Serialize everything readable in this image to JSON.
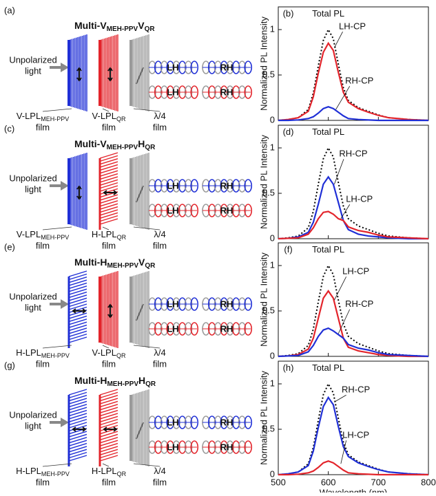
{
  "schematics": [
    {
      "label": "(a)",
      "title": [
        "Multi-V",
        "MEH-PPV",
        "V",
        "QR"
      ],
      "input": [
        "Unpolarized",
        "light"
      ],
      "films": [
        {
          "name": "V-LPL",
          "sub": "MEH-PPV",
          "line2": "film"
        },
        {
          "name": "V-LPL",
          "sub": "QR",
          "line2": "film"
        },
        {
          "name": "λ/4",
          "line2": "film"
        }
      ],
      "beams": [
        [
          "LH",
          "RH"
        ],
        [
          "LH",
          "RH"
        ]
      ]
    },
    {
      "label": "(c)",
      "title": [
        "Multi-V",
        "MEH-PPV",
        "H",
        "QR"
      ],
      "input": [
        "Unpolarized",
        "light"
      ],
      "films": [
        {
          "name": "V-LPL",
          "sub": "MEH-PPV",
          "line2": "film"
        },
        {
          "name": "H-LPL",
          "sub": "QR",
          "line2": "film"
        },
        {
          "name": "λ/4",
          "line2": "film"
        }
      ],
      "beams": [
        [
          "LH",
          "RH"
        ],
        [
          "LH",
          "RH"
        ]
      ]
    },
    {
      "label": "(e)",
      "title": [
        "Multi-H",
        "MEH-PPV",
        "V",
        "QR"
      ],
      "input": [
        "Unpolarized",
        "light"
      ],
      "films": [
        {
          "name": "H-LPL",
          "sub": "MEH-PPV",
          "line2": "film"
        },
        {
          "name": "V-LPL",
          "sub": "QR",
          "line2": "film"
        },
        {
          "name": "λ/4",
          "line2": "film"
        }
      ],
      "beams": [
        [
          "LH",
          "RH"
        ],
        [
          "LH",
          "RH"
        ]
      ]
    },
    {
      "label": "(g)",
      "title": [
        "Multi-H",
        "MEH-PPV",
        "H",
        "QR"
      ],
      "input": [
        "Unpolarized",
        "light"
      ],
      "films": [
        {
          "name": "H-LPL",
          "sub": "MEH-PPV",
          "line2": "film"
        },
        {
          "name": "H-LPL",
          "sub": "QR",
          "line2": "film"
        },
        {
          "name": "λ/4",
          "line2": "film"
        }
      ],
      "beams": [
        [
          "LH",
          "RH"
        ],
        [
          "LH",
          "RH"
        ]
      ]
    }
  ],
  "chart_data": [
    {
      "type": "line",
      "panel": "(b)",
      "ylabel": "Normalized PL Intensity",
      "x": [
        500,
        520,
        540,
        560,
        570,
        580,
        590,
        600,
        610,
        620,
        630,
        640,
        660,
        680,
        700,
        720,
        740,
        760,
        780,
        800
      ],
      "xlim": [
        500,
        800
      ],
      "xticks": [
        500,
        600,
        700,
        800
      ],
      "ylim": [
        0,
        1.25
      ],
      "yticks": [
        0,
        0.5,
        1
      ],
      "series": [
        {
          "name": "Total PL",
          "color": "#000000",
          "style": "dotted",
          "values": [
            0,
            0.01,
            0.03,
            0.12,
            0.3,
            0.6,
            0.88,
            1.0,
            0.9,
            0.62,
            0.36,
            0.22,
            0.14,
            0.1,
            0.06,
            0.03,
            0.02,
            0.01,
            0.005,
            0
          ]
        },
        {
          "name": "LH-CP",
          "color": "#e3242b",
          "style": "solid",
          "values": [
            0,
            0.01,
            0.03,
            0.1,
            0.26,
            0.52,
            0.75,
            0.85,
            0.77,
            0.53,
            0.31,
            0.2,
            0.13,
            0.09,
            0.055,
            0.03,
            0.02,
            0.01,
            0.005,
            0
          ]
        },
        {
          "name": "RH-CP",
          "color": "#1f2fd6",
          "style": "solid",
          "values": [
            0,
            0,
            0.005,
            0.02,
            0.04,
            0.08,
            0.13,
            0.15,
            0.13,
            0.09,
            0.05,
            0.02,
            0.01,
            0.005,
            0,
            0,
            0,
            0,
            0,
            0
          ]
        }
      ]
    },
    {
      "type": "line",
      "panel": "(d)",
      "ylabel": "Normalized PL Intensity",
      "x": [
        500,
        520,
        540,
        560,
        570,
        580,
        590,
        600,
        610,
        620,
        630,
        640,
        660,
        680,
        700,
        720,
        740,
        760,
        780,
        800
      ],
      "xlim": [
        500,
        800
      ],
      "xticks": [
        500,
        600,
        700,
        800
      ],
      "ylim": [
        0,
        1.25
      ],
      "yticks": [
        0,
        0.5,
        1
      ],
      "series": [
        {
          "name": "Total PL",
          "color": "#000000",
          "style": "dotted",
          "values": [
            0,
            0.01,
            0.03,
            0.12,
            0.3,
            0.6,
            0.88,
            1.0,
            0.9,
            0.62,
            0.36,
            0.22,
            0.14,
            0.1,
            0.06,
            0.03,
            0.02,
            0.01,
            0.005,
            0
          ]
        },
        {
          "name": "RH-CP",
          "color": "#1f2fd6",
          "style": "solid",
          "values": [
            0,
            0.005,
            0.02,
            0.07,
            0.18,
            0.38,
            0.6,
            0.68,
            0.6,
            0.4,
            0.2,
            0.1,
            0.05,
            0.03,
            0.02,
            0.01,
            0.005,
            0,
            0,
            0
          ]
        },
        {
          "name": "LH-CP",
          "color": "#e3242b",
          "style": "solid",
          "values": [
            0,
            0.005,
            0.01,
            0.05,
            0.12,
            0.22,
            0.29,
            0.3,
            0.27,
            0.22,
            0.2,
            0.13,
            0.09,
            0.07,
            0.04,
            0.02,
            0.015,
            0.01,
            0.005,
            0
          ]
        }
      ]
    },
    {
      "type": "line",
      "panel": "(f)",
      "ylabel": "Normalized PL Intensity",
      "x": [
        500,
        520,
        540,
        560,
        570,
        580,
        590,
        600,
        610,
        620,
        630,
        640,
        660,
        680,
        700,
        720,
        740,
        760,
        780,
        800
      ],
      "xlim": [
        500,
        800
      ],
      "xticks": [
        500,
        600,
        700,
        800
      ],
      "ylim": [
        0,
        1.25
      ],
      "yticks": [
        0,
        0.5,
        1
      ],
      "series": [
        {
          "name": "Total PL",
          "color": "#000000",
          "style": "dotted",
          "values": [
            0,
            0.01,
            0.03,
            0.12,
            0.3,
            0.6,
            0.88,
            1.0,
            0.9,
            0.62,
            0.36,
            0.22,
            0.14,
            0.1,
            0.06,
            0.03,
            0.02,
            0.01,
            0.005,
            0
          ]
        },
        {
          "name": "LH-CP",
          "color": "#e3242b",
          "style": "solid",
          "values": [
            0,
            0.005,
            0.02,
            0.08,
            0.2,
            0.42,
            0.64,
            0.72,
            0.64,
            0.42,
            0.2,
            0.1,
            0.06,
            0.04,
            0.02,
            0.01,
            0.005,
            0,
            0,
            0
          ]
        },
        {
          "name": "RH-CP",
          "color": "#1f2fd6",
          "style": "solid",
          "values": [
            0,
            0.005,
            0.01,
            0.05,
            0.12,
            0.22,
            0.29,
            0.31,
            0.28,
            0.24,
            0.2,
            0.13,
            0.09,
            0.07,
            0.04,
            0.02,
            0.015,
            0.01,
            0.005,
            0
          ]
        }
      ]
    },
    {
      "type": "line",
      "panel": "(h)",
      "ylabel": "Normalized PL Intensity",
      "xlabel": "Wavelength (nm)",
      "x": [
        500,
        520,
        540,
        560,
        570,
        580,
        590,
        600,
        610,
        620,
        630,
        640,
        660,
        680,
        700,
        720,
        740,
        760,
        780,
        800
      ],
      "xlim": [
        500,
        800
      ],
      "xticks": [
        500,
        600,
        700,
        800
      ],
      "ylim": [
        0,
        1.25
      ],
      "yticks": [
        0,
        0.5,
        1
      ],
      "series": [
        {
          "name": "Total PL",
          "color": "#000000",
          "style": "dotted",
          "values": [
            0,
            0.01,
            0.03,
            0.12,
            0.3,
            0.6,
            0.88,
            1.0,
            0.9,
            0.62,
            0.36,
            0.22,
            0.14,
            0.1,
            0.06,
            0.03,
            0.02,
            0.01,
            0.005,
            0
          ]
        },
        {
          "name": "RH-CP",
          "color": "#1f2fd6",
          "style": "solid",
          "values": [
            0,
            0.01,
            0.03,
            0.1,
            0.26,
            0.52,
            0.75,
            0.85,
            0.77,
            0.53,
            0.31,
            0.2,
            0.13,
            0.09,
            0.055,
            0.03,
            0.02,
            0.01,
            0.005,
            0
          ]
        },
        {
          "name": "LH-CP",
          "color": "#e3242b",
          "style": "solid",
          "values": [
            0,
            0,
            0.005,
            0.02,
            0.04,
            0.08,
            0.13,
            0.15,
            0.13,
            0.09,
            0.05,
            0.02,
            0.01,
            0.005,
            0,
            0,
            0,
            0,
            0,
            0
          ]
        }
      ]
    }
  ]
}
